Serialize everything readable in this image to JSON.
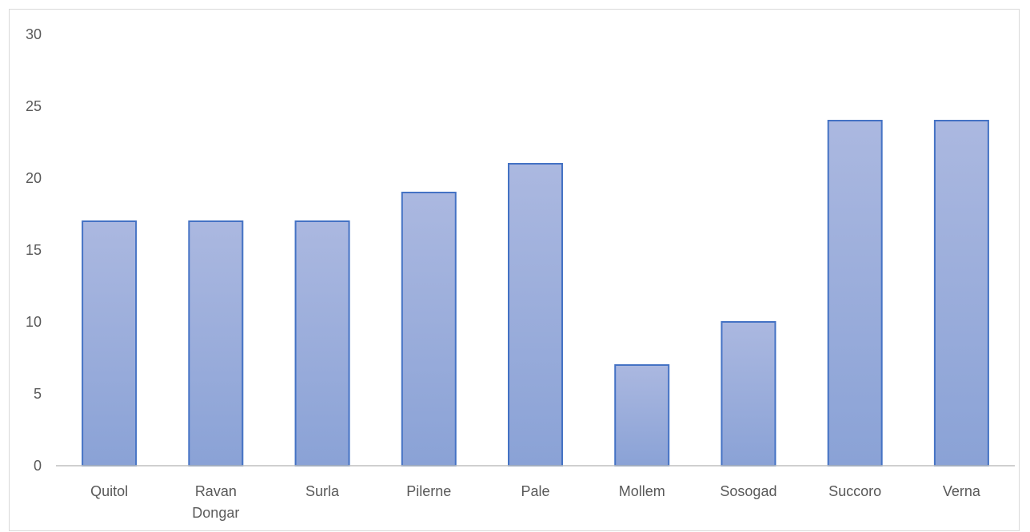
{
  "chart_data": {
    "type": "bar",
    "title": "",
    "xlabel": "",
    "ylabel": "",
    "categories": [
      "Quitol",
      "Ravan Dongar",
      "Surla",
      "Pilerne",
      "Pale",
      "Mollem",
      "Sosogad",
      "Succoro",
      "Verna"
    ],
    "category_label_lines": [
      [
        "Quitol"
      ],
      [
        "Ravan",
        "Dongar"
      ],
      [
        "Surla"
      ],
      [
        "Pilerne"
      ],
      [
        "Pale"
      ],
      [
        "Mollem"
      ],
      [
        "Sosogad"
      ],
      [
        "Succoro"
      ],
      [
        "Verna"
      ]
    ],
    "values": [
      17,
      17,
      17,
      19,
      21,
      7,
      10,
      24,
      24
    ],
    "ylim": [
      0,
      30
    ],
    "yticks": [
      0,
      5,
      10,
      15,
      20,
      25,
      30
    ],
    "grid": false,
    "legend": "none",
    "colors": {
      "bar_fill_top": "#abb8e0",
      "bar_fill_bottom": "#8aa2d6",
      "bar_border": "#4472c4",
      "axis": "#bfbfbf",
      "tick_text": "#595959"
    }
  }
}
